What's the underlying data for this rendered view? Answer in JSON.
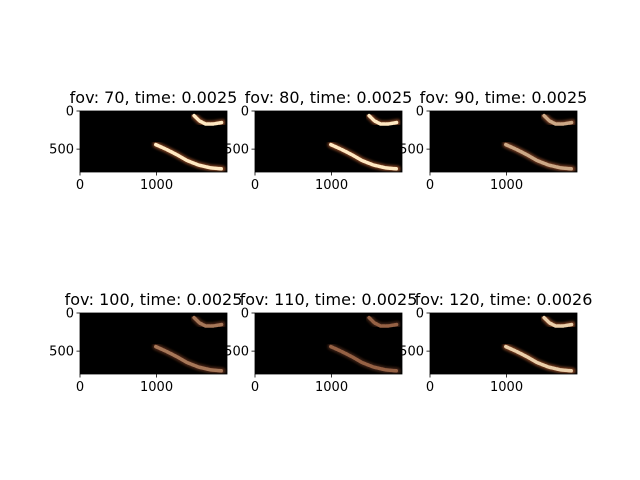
{
  "chart_data": [
    {
      "type": "heatmap",
      "title": "fov: 70, time: 0.0025",
      "xticks": [
        0,
        1000
      ],
      "yticks": [
        0,
        500
      ],
      "xlim": [
        0,
        1920
      ],
      "ylim": [
        800,
        0
      ],
      "colormap": "copper",
      "intensity": 1.0
    },
    {
      "type": "heatmap",
      "title": "fov: 80, time: 0.0025",
      "xticks": [
        0,
        1000
      ],
      "yticks": [
        0,
        500
      ],
      "xlim": [
        0,
        1920
      ],
      "ylim": [
        800,
        0
      ],
      "colormap": "copper",
      "intensity": 1.0
    },
    {
      "type": "heatmap",
      "title": "fov: 90, time: 0.0025",
      "xticks": [
        0,
        1000
      ],
      "yticks": [
        0,
        500
      ],
      "xlim": [
        0,
        1920
      ],
      "ylim": [
        800,
        0
      ],
      "colormap": "copper",
      "intensity": 0.62
    },
    {
      "type": "heatmap",
      "title": "fov: 100, time: 0.0025",
      "xticks": [
        0,
        1000
      ],
      "yticks": [
        0,
        500
      ],
      "xlim": [
        0,
        1920
      ],
      "ylim": [
        800,
        0
      ],
      "colormap": "copper",
      "intensity": 0.33
    },
    {
      "type": "heatmap",
      "title": "fov: 110, time: 0.0025",
      "xticks": [
        0,
        1000
      ],
      "yticks": [
        0,
        500
      ],
      "xlim": [
        0,
        1920
      ],
      "ylim": [
        800,
        0
      ],
      "colormap": "copper",
      "intensity": 0.2
    },
    {
      "type": "heatmap",
      "title": "fov: 120, time: 0.0026",
      "xticks": [
        0,
        1000
      ],
      "yticks": [
        0,
        500
      ],
      "xlim": [
        0,
        1920
      ],
      "ylim": [
        800,
        0
      ],
      "colormap": "copper",
      "intensity": 0.85
    }
  ],
  "colors": {
    "background": "#000000",
    "stroke_low": "#7a3f24",
    "stroke_high": "#ffe9c2",
    "axis": "#000000"
  }
}
